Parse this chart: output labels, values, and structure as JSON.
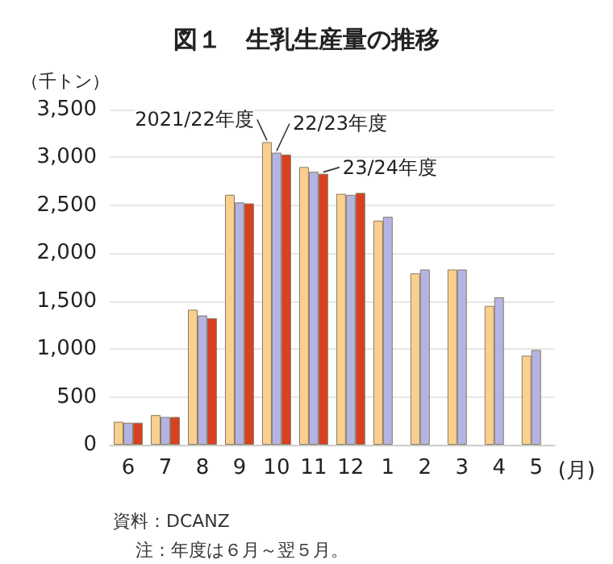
{
  "chart_data": {
    "type": "bar",
    "title": "図１　生乳生産量の推移",
    "ylabel": "（千トン）",
    "xlabel": "(月)",
    "categories": [
      "6",
      "7",
      "8",
      "9",
      "10",
      "11",
      "12",
      "1",
      "2",
      "3",
      "4",
      "5"
    ],
    "series": [
      {
        "name": "2021/22年度",
        "color": "#f9d08f",
        "values": [
          240,
          310,
          1410,
          2610,
          3160,
          2900,
          2620,
          2340,
          1790,
          1830,
          1450,
          930
        ]
      },
      {
        "name": "22/23年度",
        "color": "#b4b4e4",
        "values": [
          230,
          290,
          1350,
          2530,
          3050,
          2850,
          2610,
          2380,
          1830,
          1830,
          1540,
          990
        ]
      },
      {
        "name": "23/24年度",
        "color": "#d8401f",
        "values": [
          230,
          290,
          1320,
          2520,
          3030,
          2830,
          2630,
          null,
          null,
          null,
          null,
          null
        ]
      }
    ],
    "ylim": [
      0,
      3500
    ],
    "yticks": [
      0,
      500,
      {
        "value": 1000,
        "label": "1,000"
      },
      {
        "value": 1500,
        "label": "1,500"
      },
      {
        "value": 2000,
        "label": "2,000"
      },
      {
        "value": 2500,
        "label": "2,500"
      },
      {
        "value": 3000,
        "label": "3,000"
      },
      {
        "value": 3500,
        "label": "3,500"
      }
    ],
    "grid": "y",
    "legend": false,
    "annotations": [
      "資料：DCANZ",
      "注：年度は６月～翌５月。"
    ]
  }
}
